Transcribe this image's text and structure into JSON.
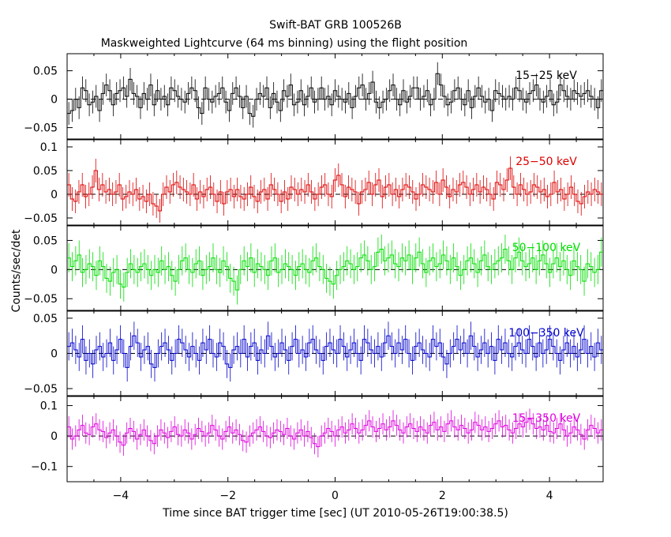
{
  "title": "Swift-BAT GRB 100526B",
  "subtitle": "Maskweighted Lightcurve (64 ms binning) using the flight position",
  "chart_data": {
    "type": "line",
    "title": "Swift-BAT GRB 100526B",
    "subtitle": "Maskweighted Lightcurve (64 ms binning) using the flight position",
    "xlabel": "Time since BAT trigger time [sec] (UT 2010-05-26T19:00:38.5)",
    "ylabel": "Counts/sec/det",
    "xlim": [
      -5,
      5
    ],
    "x_ticks": [
      "−4",
      "−2",
      "0",
      "2",
      "4"
    ],
    "bin_width_sec": 0.064,
    "grid": false,
    "reference_line": 0,
    "series": [
      {
        "name": "15−25 keV",
        "color": "#000000",
        "ylim": [
          -0.07,
          0.08
        ],
        "y_ticks": [
          "−0.05",
          "0",
          "0.05"
        ],
        "y_tick_values": [
          -0.05,
          0,
          0.05
        ],
        "values": [
          -0.025,
          -0.02,
          0.0,
          -0.015,
          0.02,
          0.015,
          -0.01,
          -0.005,
          0.005,
          -0.02,
          0.01,
          0.025,
          0.015,
          -0.01,
          0.01,
          0.015,
          0.02,
          0.005,
          0.035,
          0.01,
          0.005,
          -0.015,
          0.01,
          0.0,
          0.025,
          -0.01,
          0.015,
          0.0,
          0.005,
          -0.01,
          0.02,
          0.015,
          0.005,
          0.0,
          -0.005,
          0.01,
          0.02,
          0.015,
          -0.015,
          -0.025,
          0.02,
          0.0,
          -0.005,
          0.005,
          0.01,
          0.02,
          -0.005,
          -0.02,
          0.01,
          0.02,
          0.005,
          -0.015,
          0.005,
          -0.025,
          -0.03,
          0.0,
          0.01,
          0.005,
          0.02,
          -0.015,
          0.01,
          -0.005,
          -0.02,
          0.015,
          0.005,
          0.025,
          -0.01,
          -0.005,
          0.015,
          -0.01,
          0.005,
          0.02,
          -0.005,
          0.0,
          0.02,
          0.0,
          0.005,
          -0.01,
          0.015,
          0.005,
          0.0,
          -0.005,
          0.01,
          -0.015,
          0.005,
          0.02,
          0.025,
          0.0,
          0.01,
          0.03,
          -0.005,
          -0.015,
          -0.005,
          0.0,
          0.015,
          0.025,
          0.0,
          -0.01,
          0.015,
          -0.005,
          0.005,
          0.02,
          0.02,
          0.0,
          0.005,
          0.015,
          -0.01,
          0.0,
          0.045,
          0.025,
          0.005,
          -0.01,
          -0.005,
          0.015,
          0.02,
          0.0,
          -0.01,
          0.015,
          -0.015,
          0.005,
          0.02,
          0.005,
          -0.005,
          0.0,
          -0.02,
          0.015,
          0.01,
          0.005,
          0.0,
          0.005,
          0.0,
          0.02,
          0.015,
          0.0,
          -0.005,
          0.01,
          0.015,
          0.025,
          0.0,
          -0.005,
          0.005,
          0.015,
          -0.01,
          -0.005,
          0.025,
          0.015,
          0.005,
          0.0,
          0.015,
          0.01,
          0.005,
          0.01,
          0.015,
          0.005,
          0.0,
          -0.015,
          0.015
        ],
        "errors": 0.02
      },
      {
        "name": "25−50 keV",
        "color": "#dd0000",
        "ylim": [
          -0.065,
          0.115
        ],
        "y_ticks": [
          "−0.05",
          "0",
          "0.05",
          "0.1"
        ],
        "y_tick_values": [
          -0.05,
          0,
          0.05,
          0.1
        ],
        "values": [
          0.02,
          -0.01,
          -0.015,
          0.005,
          0.02,
          -0.005,
          0.0,
          0.015,
          0.05,
          0.01,
          0.02,
          0.005,
          0.01,
          0.0,
          0.005,
          0.02,
          -0.01,
          -0.005,
          0.005,
          0.0,
          0.01,
          -0.01,
          -0.005,
          -0.015,
          0.0,
          -0.02,
          -0.025,
          -0.035,
          0.0,
          0.015,
          0.005,
          0.02,
          0.025,
          0.015,
          0.01,
          0.005,
          0.0,
          0.02,
          -0.01,
          0.005,
          -0.005,
          0.01,
          0.015,
          0.0,
          -0.015,
          0.005,
          -0.02,
          0.005,
          0.01,
          -0.005,
          0.01,
          -0.005,
          -0.01,
          0.0,
          0.015,
          -0.005,
          -0.015,
          0.005,
          0.01,
          -0.01,
          0.02,
          0.01,
          0.0,
          -0.015,
          0.005,
          -0.01,
          0.015,
          0.01,
          0.0,
          0.01,
          0.005,
          0.02,
          0.005,
          -0.01,
          0.0,
          0.015,
          0.02,
          0.0,
          -0.005,
          0.03,
          0.04,
          0.02,
          -0.005,
          0.015,
          0.01,
          0.005,
          -0.02,
          0.005,
          0.01,
          0.025,
          0.0,
          0.02,
          0.03,
          -0.005,
          0.015,
          0.02,
          0.0,
          0.01,
          -0.005,
          0.01,
          0.02,
          0.015,
          0.005,
          -0.01,
          0.0,
          0.02,
          0.015,
          0.01,
          0.005,
          0.025,
          0.0,
          0.03,
          0.015,
          -0.005,
          0.01,
          0.005,
          0.02,
          0.025,
          0.015,
          0.0,
          0.01,
          0.02,
          0.005,
          0.015,
          0.01,
          0.0,
          -0.01,
          0.025,
          0.02,
          0.01,
          0.03,
          0.055,
          0.015,
          0.0,
          0.02,
          0.01,
          0.0,
          0.005,
          0.02,
          0.015,
          0.005,
          0.01,
          -0.005,
          0.0,
          0.025,
          0.005,
          0.01,
          -0.01,
          0.0,
          0.015,
          0.0,
          -0.015,
          -0.02,
          -0.005,
          0.005,
          0.0,
          0.01,
          0.005,
          0.0
        ],
        "errors": 0.025
      },
      {
        "name": "50−100 keV",
        "color": "#00dd00",
        "ylim": [
          -0.07,
          0.075
        ],
        "y_ticks": [
          "−0.05",
          "0",
          "0.05"
        ],
        "y_tick_values": [
          -0.05,
          0,
          0.05
        ],
        "values": [
          0.02,
          0.005,
          0.015,
          0.025,
          -0.005,
          0.0,
          0.01,
          0.005,
          -0.01,
          0.015,
          0.005,
          -0.015,
          -0.02,
          -0.005,
          0.0,
          -0.025,
          -0.03,
          -0.005,
          0.01,
          0.0,
          -0.005,
          0.005,
          0.01,
          0.0,
          -0.01,
          0.0,
          -0.005,
          0.015,
          0.0,
          0.005,
          -0.01,
          -0.02,
          0.0,
          0.015,
          0.02,
          0.0,
          -0.005,
          0.01,
          0.015,
          -0.01,
          0.0,
          0.005,
          0.02,
          0.0,
          -0.005,
          0.015,
          0.005,
          -0.015,
          -0.02,
          -0.035,
          0.0,
          0.015,
          0.005,
          0.02,
          -0.005,
          0.01,
          0.005,
          0.0,
          -0.01,
          0.015,
          0.02,
          -0.005,
          0.0,
          0.01,
          0.005,
          0.0,
          -0.01,
          0.005,
          0.01,
          0.0,
          -0.005,
          0.015,
          0.02,
          0.005,
          0.0,
          -0.015,
          -0.02,
          -0.025,
          -0.01,
          0.0,
          0.005,
          0.015,
          0.01,
          0.0,
          0.005,
          0.02,
          0.025,
          0.015,
          0.0,
          0.005,
          0.03,
          0.035,
          0.015,
          0.02,
          0.025,
          0.01,
          0.005,
          0.02,
          0.015,
          0.025,
          0.0,
          0.02,
          0.03,
          0.01,
          -0.005,
          0.015,
          0.02,
          0.005,
          0.01,
          0.025,
          0.015,
          0.0,
          0.02,
          0.005,
          -0.01,
          0.0,
          0.015,
          0.02,
          0.01,
          -0.005,
          0.015,
          0.025,
          0.005,
          0.0,
          0.01,
          0.015,
          0.02,
          0.035,
          0.015,
          0.0,
          0.02,
          0.03,
          0.015,
          0.005,
          0.01,
          0.02,
          0.0,
          0.015,
          0.025,
          0.01,
          -0.005,
          0.01,
          0.02,
          0.005,
          0.015,
          0.0,
          -0.01,
          0.015,
          0.005,
          0.0,
          -0.02,
          0.01,
          0.005,
          -0.005,
          0.0,
          0.03
        ],
        "errors": 0.025
      },
      {
        "name": "100−350 keV",
        "color": "#0000cc",
        "ylim": [
          -0.06,
          0.06
        ],
        "y_ticks": [
          "−0.05",
          "0",
          "0.05"
        ],
        "y_tick_values": [
          -0.05,
          0,
          0.05
        ],
        "values": [
          0.01,
          0.015,
          0.005,
          -0.005,
          0.02,
          -0.01,
          0.0,
          -0.015,
          0.005,
          0.01,
          -0.005,
          0.0,
          0.015,
          -0.01,
          0.005,
          0.02,
          0.0,
          -0.02,
          0.01,
          0.025,
          0.015,
          -0.005,
          0.005,
          0.01,
          -0.015,
          -0.02,
          0.0,
          0.01,
          0.015,
          0.005,
          -0.01,
          0.0,
          0.02,
          0.015,
          0.005,
          -0.005,
          0.01,
          0.0,
          -0.01,
          0.015,
          0.005,
          0.02,
          0.0,
          -0.005,
          0.015,
          0.01,
          -0.015,
          -0.02,
          0.005,
          0.01,
          0.0,
          0.02,
          -0.005,
          0.01,
          0.015,
          -0.01,
          0.005,
          0.0,
          0.025,
          0.01,
          -0.005,
          0.0,
          0.015,
          0.005,
          -0.01,
          0.01,
          0.02,
          0.0,
          0.005,
          -0.005,
          0.015,
          0.02,
          0.005,
          0.0,
          -0.01,
          0.01,
          0.015,
          0.005,
          0.0,
          0.02,
          0.01,
          -0.005,
          0.005,
          0.015,
          0.0,
          -0.01,
          0.02,
          0.015,
          0.005,
          0.0,
          0.01,
          -0.005,
          0.015,
          0.025,
          0.01,
          0.0,
          0.015,
          0.005,
          0.02,
          0.0,
          -0.01,
          0.01,
          0.015,
          0.005,
          0.0,
          -0.005,
          0.02,
          0.01,
          0.015,
          -0.005,
          -0.015,
          0.0,
          0.01,
          0.02,
          0.005,
          0.015,
          0.0,
          0.025,
          0.01,
          -0.005,
          0.005,
          0.015,
          0.0,
          0.01,
          -0.01,
          0.02,
          0.005,
          0.015,
          0.0,
          -0.005,
          0.01,
          0.015,
          0.005,
          0.0,
          0.02,
          0.01,
          -0.005,
          0.015,
          0.0,
          0.005,
          0.02,
          0.01,
          0.0,
          -0.01,
          0.005,
          0.015,
          0.0,
          0.01,
          -0.005,
          0.005,
          0.02,
          0.0,
          0.01,
          -0.005,
          0.015,
          0.005
        ],
        "errors": 0.02
      },
      {
        "name": "15−350 keV",
        "color": "#dd00dd",
        "ylim": [
          -0.15,
          0.13
        ],
        "y_ticks": [
          "−0.1",
          "0",
          "0.1"
        ],
        "y_tick_values": [
          -0.1,
          0,
          0.1
        ],
        "values": [
          0.03,
          -0.01,
          0.0,
          0.02,
          0.035,
          0.01,
          0.005,
          0.03,
          0.04,
          0.02,
          0.015,
          -0.005,
          0.01,
          0.02,
          0.0,
          -0.02,
          -0.03,
          0.01,
          0.025,
          0.015,
          -0.01,
          0.005,
          0.02,
          0.0,
          -0.015,
          -0.025,
          0.0,
          0.02,
          0.01,
          -0.005,
          0.015,
          0.03,
          0.005,
          0.0,
          0.02,
          0.01,
          -0.01,
          0.005,
          0.025,
          0.015,
          0.0,
          0.01,
          0.035,
          0.02,
          0.0,
          -0.01,
          0.015,
          0.03,
          0.01,
          0.02,
          0.005,
          -0.015,
          -0.02,
          0.0,
          0.01,
          0.02,
          0.03,
          0.015,
          0.0,
          -0.005,
          0.01,
          0.02,
          0.015,
          0.005,
          0.025,
          0.0,
          -0.01,
          0.01,
          0.02,
          0.0,
          0.015,
          -0.005,
          -0.025,
          -0.035,
          0.0,
          0.01,
          0.025,
          0.015,
          0.0,
          0.02,
          0.03,
          0.01,
          0.02,
          0.04,
          0.025,
          0.01,
          0.02,
          0.035,
          0.05,
          0.03,
          0.015,
          0.025,
          0.04,
          0.02,
          0.03,
          0.05,
          0.035,
          0.02,
          0.01,
          0.03,
          0.04,
          0.025,
          0.015,
          0.03,
          0.02,
          0.01,
          0.035,
          0.045,
          0.02,
          0.03,
          0.015,
          0.04,
          0.05,
          0.03,
          0.02,
          0.035,
          0.025,
          0.01,
          0.02,
          0.045,
          0.035,
          0.02,
          0.03,
          0.015,
          0.025,
          0.04,
          0.05,
          0.03,
          0.035,
          0.02,
          0.01,
          0.025,
          0.04,
          0.03,
          0.045,
          0.055,
          0.04,
          0.025,
          0.03,
          0.02,
          0.035,
          0.015,
          0.01,
          0.025,
          0.04,
          0.02,
          0.0,
          0.01,
          0.03,
          0.02,
          0.005,
          -0.01,
          0.02,
          0.035,
          0.025,
          0.01,
          0.02
        ],
        "errors": 0.035
      }
    ]
  }
}
